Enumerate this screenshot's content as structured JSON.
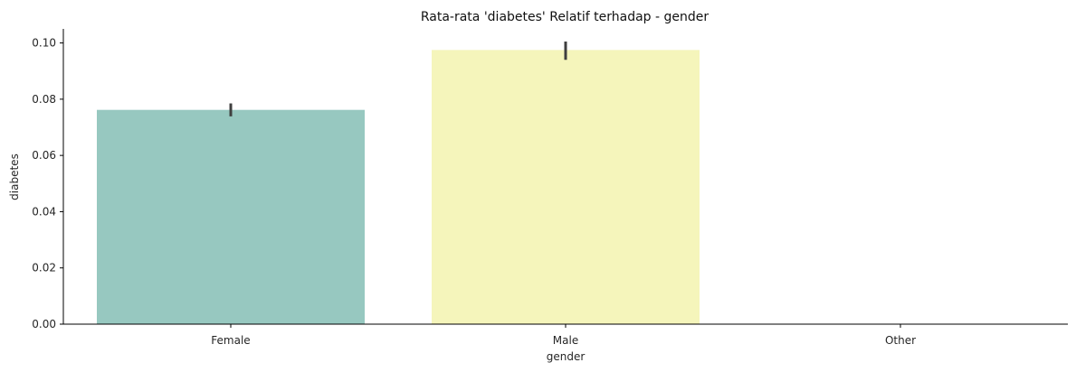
{
  "chart_data": {
    "type": "bar",
    "title": "Rata-rata 'diabetes' Relatif terhadap - gender",
    "xlabel": "gender",
    "ylabel": "diabetes",
    "categories": [
      "Female",
      "Male",
      "Other"
    ],
    "values": [
      0.0762,
      0.0975,
      0.0
    ],
    "error_bars": [
      {
        "low": 0.0739,
        "high": 0.0785
      },
      {
        "low": 0.094,
        "high": 0.1005
      },
      null
    ],
    "colors": [
      "#97c8c0",
      "#f5f5bb",
      "#bebada"
    ],
    "ylim": [
      0,
      0.105
    ],
    "yticks": [
      0.0,
      0.02,
      0.04,
      0.06,
      0.08,
      0.1
    ],
    "ytick_labels": [
      "0.00",
      "0.02",
      "0.04",
      "0.06",
      "0.08",
      "0.10"
    ],
    "grid": false,
    "legend": "none"
  }
}
